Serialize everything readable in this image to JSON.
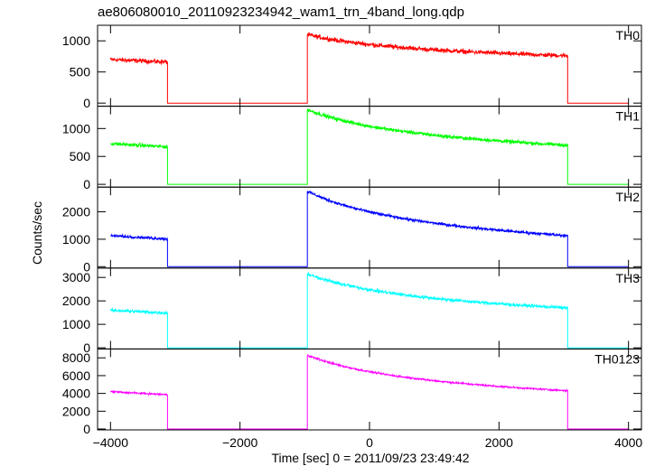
{
  "chart_data": {
    "type": "line",
    "title": "ae806080010_20110923234942_wam1_trn_4band_long.qdp",
    "xlabel": "Time [sec] 0 = 2011/09/23 23:49:42",
    "ylabel": "Counts/sec",
    "xlim": [
      -4200,
      4200
    ],
    "x_ticks": [
      -4000,
      -2000,
      0,
      2000,
      4000
    ],
    "x_tick_labels": [
      "−4000",
      "−2000",
      "0",
      "2000",
      "4000"
    ],
    "grid": false,
    "segments": [
      {
        "x_start": -4000,
        "x_end": -3120,
        "kind": "early"
      },
      {
        "x_start": -3120,
        "x_end": -960,
        "kind": "off"
      },
      {
        "x_start": -960,
        "x_end": 3060,
        "kind": "decay"
      },
      {
        "x_start": 3060,
        "x_end": 4000,
        "kind": "off"
      }
    ],
    "series": [
      {
        "name": "TH0",
        "color": "#ff0000",
        "ylim": [
          -50,
          1250
        ],
        "ticks": [
          0,
          500,
          1000
        ],
        "tick_labels": [
          "0",
          "500",
          "1000"
        ],
        "early_level": [
          700,
          660
        ],
        "decay_start": 1100,
        "decay_end": 760,
        "off_level": 0,
        "noise": 25
      },
      {
        "name": "TH1",
        "color": "#00ff00",
        "ylim": [
          -50,
          1400
        ],
        "ticks": [
          0,
          500,
          1000
        ],
        "tick_labels": [
          "0",
          "500",
          "1000"
        ],
        "early_level": [
          730,
          670
        ],
        "decay_start": 1340,
        "decay_end": 700,
        "off_level": 0,
        "noise": 22
      },
      {
        "name": "TH2",
        "color": "#0000ff",
        "ylim": [
          -50,
          2900
        ],
        "ticks": [
          0,
          1000,
          2000
        ],
        "tick_labels": [
          "0",
          "1000",
          "2000"
        ],
        "early_level": [
          1130,
          1010
        ],
        "decay_start": 2750,
        "decay_end": 1130,
        "off_level": 0,
        "noise": 35
      },
      {
        "name": "TH3",
        "color": "#00ffff",
        "ylim": [
          -50,
          3400
        ],
        "ticks": [
          0,
          1000,
          2000,
          3000
        ],
        "tick_labels": [
          "0",
          "1000",
          "2000",
          "3000"
        ],
        "early_level": [
          1600,
          1480
        ],
        "decay_start": 3150,
        "decay_end": 1700,
        "off_level": 0,
        "noise": 45
      },
      {
        "name": "TH0123",
        "color": "#ff00ff",
        "ylim": [
          -100,
          9000
        ],
        "ticks": [
          0,
          2000,
          4000,
          6000,
          8000
        ],
        "tick_labels": [
          "0",
          "2000",
          "4000",
          "6000",
          "8000"
        ],
        "early_level": [
          4200,
          3850
        ],
        "decay_start": 8300,
        "decay_end": 4300,
        "off_level": 0,
        "noise": 70
      }
    ]
  }
}
